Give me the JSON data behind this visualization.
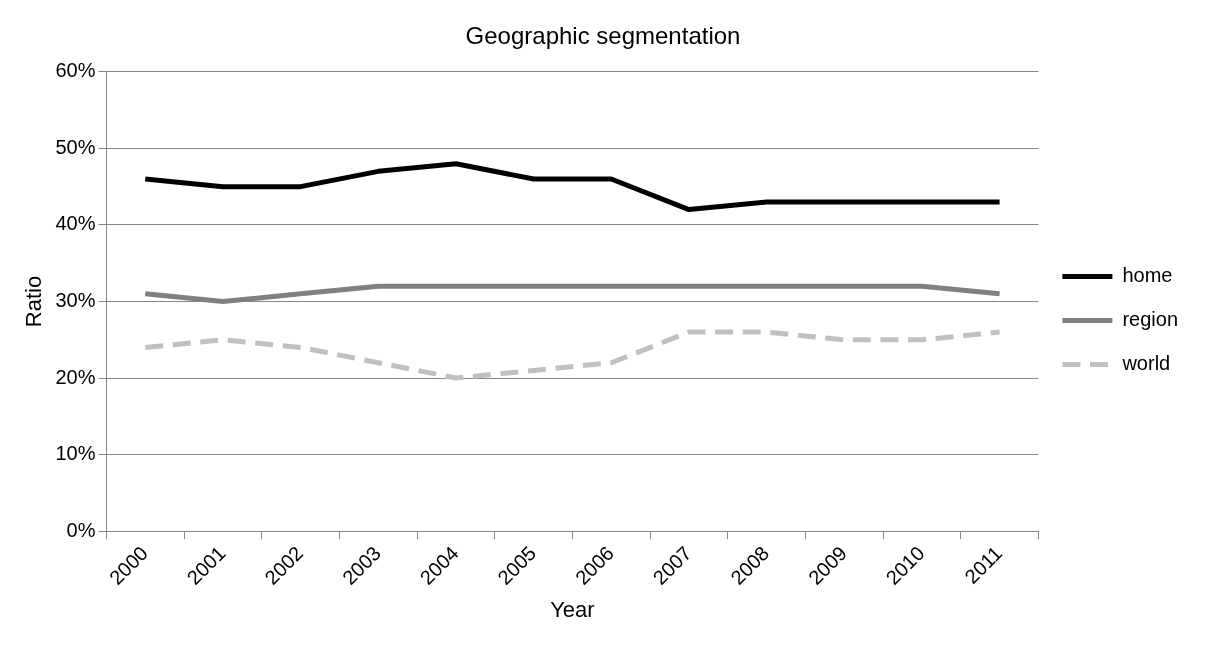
{
  "chart_data": {
    "type": "line",
    "title": "Geographic segmentation",
    "xlabel": "Year",
    "ylabel": "Ratio",
    "categories": [
      "2000",
      "2001",
      "2002",
      "2003",
      "2004",
      "2005",
      "2006",
      "2007",
      "2008",
      "2009",
      "2010",
      "2011"
    ],
    "series": [
      {
        "name": "home",
        "color": "#000000",
        "line_style": "solid",
        "values": [
          46,
          45,
          45,
          47,
          48,
          46,
          46,
          42,
          43,
          43,
          43,
          43
        ]
      },
      {
        "name": "region",
        "color": "#808080",
        "line_style": "solid",
        "values": [
          31,
          30,
          31,
          32,
          32,
          32,
          32,
          32,
          32,
          32,
          32,
          31
        ]
      },
      {
        "name": "world",
        "color": "#c0c0c0",
        "line_style": "dashed",
        "values": [
          24,
          25,
          24,
          22,
          20,
          21,
          22,
          26,
          26,
          25,
          25,
          26
        ]
      }
    ],
    "ylim": [
      0,
      60
    ],
    "yticks": [
      {
        "value": 0,
        "label": "0%"
      },
      {
        "value": 10,
        "label": "10%"
      },
      {
        "value": 20,
        "label": "20%"
      },
      {
        "value": 30,
        "label": "30%"
      },
      {
        "value": 40,
        "label": "40%"
      },
      {
        "value": 50,
        "label": "50%"
      },
      {
        "value": 60,
        "label": "60%"
      }
    ],
    "grid": "y",
    "legend": "right",
    "marker": "none"
  }
}
